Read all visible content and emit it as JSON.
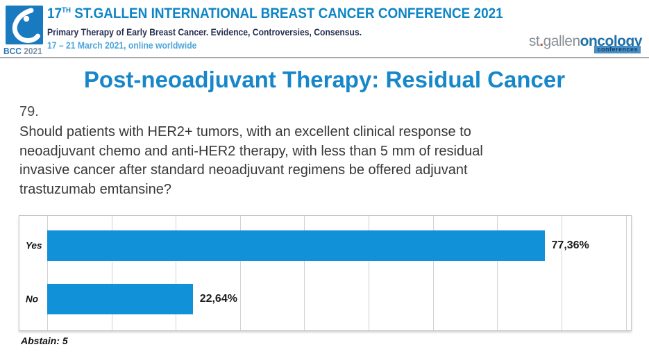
{
  "header": {
    "logo": {
      "bcc_bold": "BCC",
      "bcc_year": "2021"
    },
    "title_num": "17",
    "title_sup": "TH",
    "title_rest": " ST.GALLEN INTERNATIONAL BREAST CANCER CONFERENCE 2021",
    "subtitle": "Primary Therapy of Early Breast Cancer. Evidence, Controversies, Consensus.",
    "dates": "17 – 21 March 2021, online worldwide",
    "right_logo": {
      "part1": "st",
      "dot": ".",
      "part2": "gallen",
      "part3": "oncology",
      "sub": "conferences"
    }
  },
  "main": {
    "title": "Post-neoadjuvant Therapy: Residual Cancer",
    "question_number": "79.",
    "question_lines": [
      "Should patients with HER2+ tumors, with an excellent clinical response to",
      "neoadjuvant chemo and anti-HER2 therapy, with less than 5 mm of residual",
      "invasive cancer after standard neoadjuvant regimens be offered adjuvant",
      "trastuzumab emtansine?"
    ],
    "abstain": "Abstain: 5"
  },
  "chart_data": {
    "type": "bar",
    "orientation": "horizontal",
    "title": "",
    "categories": [
      "Yes",
      "No"
    ],
    "values": [
      77.36,
      22.64
    ],
    "value_labels": [
      "77,36%",
      "22,64%"
    ],
    "bar_color": "#1191d8",
    "xlim": [
      0,
      90.8
    ],
    "grid_step": 10,
    "grid": true,
    "legend": false
  },
  "colors": {
    "accent_blue": "#1787c9",
    "header_blue": "#0d85c6",
    "bar_blue": "#1191d8",
    "subtitle_navy": "#272f50",
    "dates_blue": "#4ea6da"
  }
}
